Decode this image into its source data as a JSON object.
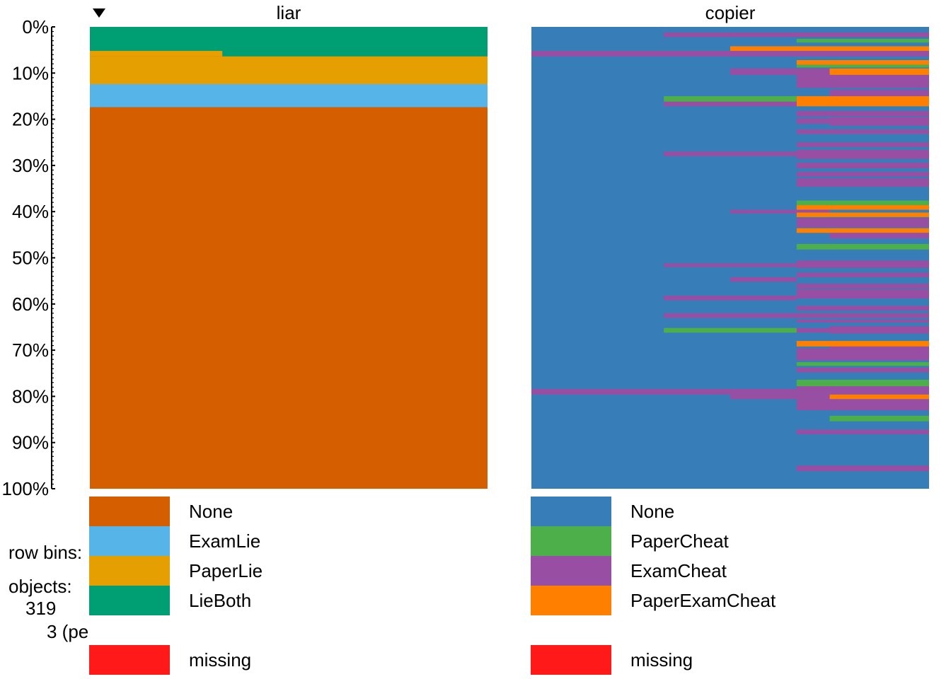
{
  "chart_data": {
    "type": "tableplot",
    "sort_indicator": "descending",
    "y_axis": {
      "ticks": [
        "0%",
        "10%",
        "20%",
        "30%",
        "40%",
        "50%",
        "60%",
        "70%",
        "80%",
        "90%",
        "100%"
      ],
      "range": [
        0,
        100
      ]
    },
    "info": {
      "row_bins_label": "row bins:",
      "objects_label": "objects:",
      "objects_count": "319",
      "objects_per_bin": "3 (pe"
    },
    "columns": [
      {
        "name": "liar",
        "sorted": true,
        "categories": [
          {
            "label": "None",
            "color": "#D55E00"
          },
          {
            "label": "ExamLie",
            "color": "#56B4E9"
          },
          {
            "label": "PaperLie",
            "color": "#E69F00"
          },
          {
            "label": "LieBoth",
            "color": "#009E73"
          }
        ],
        "missing": {
          "label": "missing",
          "color": "#FF1919"
        },
        "segments": [
          {
            "category": "LieBoth",
            "y0": 0,
            "y1": 5.2,
            "x0": 0,
            "x1": 1
          },
          {
            "category": "LieBoth",
            "y0": 5.2,
            "y1": 6.4,
            "x0": 0.333,
            "x1": 1
          },
          {
            "category": "PaperLie",
            "y0": 5.2,
            "y1": 6.4,
            "x0": 0,
            "x1": 0.333
          },
          {
            "category": "PaperLie",
            "y0": 6.4,
            "y1": 12.4,
            "x0": 0,
            "x1": 1
          },
          {
            "category": "ExamLie",
            "y0": 12.4,
            "y1": 17.4,
            "x0": 0,
            "x1": 1
          },
          {
            "category": "None",
            "y0": 17.4,
            "y1": 100,
            "x0": 0,
            "x1": 1
          }
        ]
      },
      {
        "name": "copier",
        "sorted": false,
        "categories": [
          {
            "label": "None",
            "color": "#377EB8"
          },
          {
            "label": "PaperCheat",
            "color": "#4DAF4A"
          },
          {
            "label": "ExamCheat",
            "color": "#984EA3"
          },
          {
            "label": "PaperExamCheat",
            "color": "#FF7F00"
          }
        ],
        "missing": {
          "label": "missing",
          "color": "#FF1919"
        },
        "segments": [
          {
            "category": "ExamCheat",
            "y0": 1.2,
            "y1": 2.2,
            "x0": 0.333,
            "x1": 1
          },
          {
            "category": "PaperCheat",
            "y0": 2.6,
            "y1": 3.4,
            "x0": 0.667,
            "x1": 1
          },
          {
            "category": "PaperExamCheat",
            "y0": 4.2,
            "y1": 5.2,
            "x0": 0.5,
            "x1": 1
          },
          {
            "category": "ExamCheat",
            "y0": 5.2,
            "y1": 6.4,
            "x0": 0,
            "x1": 1
          },
          {
            "category": "PaperExamCheat",
            "y0": 7.2,
            "y1": 8.2,
            "x0": 0.667,
            "x1": 1
          },
          {
            "category": "PaperCheat",
            "y0": 8.2,
            "y1": 8.8,
            "x0": 0.667,
            "x1": 1
          },
          {
            "category": "ExamCheat",
            "y0": 9.0,
            "y1": 10.4,
            "x0": 0.5,
            "x1": 0.75
          },
          {
            "category": "PaperExamCheat",
            "y0": 9.0,
            "y1": 10.4,
            "x0": 0.75,
            "x1": 1
          },
          {
            "category": "ExamCheat",
            "y0": 10.4,
            "y1": 13.2,
            "x0": 0.667,
            "x1": 1
          },
          {
            "category": "ExamCheat",
            "y0": 13.6,
            "y1": 15.0,
            "x0": 0.75,
            "x1": 1
          },
          {
            "category": "PaperCheat",
            "y0": 15.0,
            "y1": 16.2,
            "x0": 0.333,
            "x1": 0.667
          },
          {
            "category": "PaperExamCheat",
            "y0": 15.0,
            "y1": 17.2,
            "x0": 0.667,
            "x1": 1
          },
          {
            "category": "ExamCheat",
            "y0": 16.2,
            "y1": 17.2,
            "x0": 0.333,
            "x1": 0.667
          },
          {
            "category": "ExamCheat",
            "y0": 18.2,
            "y1": 19.4,
            "x0": 0.667,
            "x1": 1
          },
          {
            "category": "ExamCheat",
            "y0": 19.8,
            "y1": 21.0,
            "x0": 0.667,
            "x1": 0.75
          },
          {
            "category": "ExamCheat",
            "y0": 19.6,
            "y1": 21.4,
            "x0": 0.75,
            "x1": 1
          },
          {
            "category": "ExamCheat",
            "y0": 22.2,
            "y1": 23.2,
            "x0": 0.667,
            "x1": 1
          },
          {
            "category": "ExamCheat",
            "y0": 25.0,
            "y1": 26.0,
            "x0": 0.667,
            "x1": 1
          },
          {
            "category": "ExamCheat",
            "y0": 27.0,
            "y1": 28.0,
            "x0": 0.333,
            "x1": 0.667
          },
          {
            "category": "ExamCheat",
            "y0": 26.6,
            "y1": 28.6,
            "x0": 0.667,
            "x1": 1
          },
          {
            "category": "ExamCheat",
            "y0": 29.4,
            "y1": 30.6,
            "x0": 0.667,
            "x1": 1
          },
          {
            "category": "ExamCheat",
            "y0": 31.4,
            "y1": 32.4,
            "x0": 0.667,
            "x1": 1
          },
          {
            "category": "ExamCheat",
            "y0": 32.8,
            "y1": 34.6,
            "x0": 0.667,
            "x1": 1
          },
          {
            "category": "PaperCheat",
            "y0": 37.6,
            "y1": 38.6,
            "x0": 0.667,
            "x1": 1
          },
          {
            "category": "PaperExamCheat",
            "y0": 38.6,
            "y1": 39.6,
            "x0": 0.667,
            "x1": 1
          },
          {
            "category": "ExamCheat",
            "y0": 39.6,
            "y1": 40.4,
            "x0": 0.5,
            "x1": 0.667
          },
          {
            "category": "ExamCheat",
            "y0": 39.6,
            "y1": 40.4,
            "x0": 0.667,
            "x1": 0.75
          },
          {
            "category": "PaperExamCheat",
            "y0": 40.2,
            "y1": 41.2,
            "x0": 0.667,
            "x1": 1
          },
          {
            "category": "ExamCheat",
            "y0": 41.4,
            "y1": 43.4,
            "x0": 0.667,
            "x1": 1
          },
          {
            "category": "PaperExamCheat",
            "y0": 43.6,
            "y1": 44.6,
            "x0": 0.667,
            "x1": 1
          },
          {
            "category": "ExamCheat",
            "y0": 44.6,
            "y1": 45.8,
            "x0": 0.75,
            "x1": 1
          },
          {
            "category": "PaperCheat",
            "y0": 47.0,
            "y1": 48.2,
            "x0": 0.667,
            "x1": 1
          },
          {
            "category": "ExamCheat",
            "y0": 50.6,
            "y1": 52.2,
            "x0": 0.667,
            "x1": 1
          },
          {
            "category": "ExamCheat",
            "y0": 51.2,
            "y1": 52.0,
            "x0": 0.333,
            "x1": 0.667
          },
          {
            "category": "ExamCheat",
            "y0": 53.2,
            "y1": 54.2,
            "x0": 0.667,
            "x1": 1
          },
          {
            "category": "ExamCheat",
            "y0": 54.2,
            "y1": 55.2,
            "x0": 0.5,
            "x1": 0.667
          },
          {
            "category": "ExamCheat",
            "y0": 55.6,
            "y1": 56.6,
            "x0": 0.667,
            "x1": 1
          },
          {
            "category": "ExamCheat",
            "y0": 56.8,
            "y1": 58.8,
            "x0": 0.667,
            "x1": 1
          },
          {
            "category": "ExamCheat",
            "y0": 58.2,
            "y1": 59.2,
            "x0": 0.333,
            "x1": 0.667
          },
          {
            "category": "ExamCheat",
            "y0": 60.4,
            "y1": 61.4,
            "x0": 0.667,
            "x1": 1
          },
          {
            "category": "ExamCheat",
            "y0": 62.0,
            "y1": 63.0,
            "x0": 0.333,
            "x1": 1
          },
          {
            "category": "ExamCheat",
            "y0": 63.4,
            "y1": 64.0,
            "x0": 0.667,
            "x1": 1
          },
          {
            "category": "ExamCheat",
            "y0": 64.8,
            "y1": 66.4,
            "x0": 0.75,
            "x1": 1
          },
          {
            "category": "PaperCheat",
            "y0": 65.2,
            "y1": 66.2,
            "x0": 0.333,
            "x1": 0.667
          },
          {
            "category": "ExamCheat",
            "y0": 65.2,
            "y1": 66.2,
            "x0": 0.667,
            "x1": 0.75
          },
          {
            "category": "PaperExamCheat",
            "y0": 68.0,
            "y1": 69.2,
            "x0": 0.667,
            "x1": 1
          },
          {
            "category": "ExamCheat",
            "y0": 69.2,
            "y1": 72.2,
            "x0": 0.75,
            "x1": 1
          },
          {
            "category": "ExamCheat",
            "y0": 69.6,
            "y1": 72.2,
            "x0": 0.667,
            "x1": 0.75
          },
          {
            "category": "PaperCheat",
            "y0": 72.6,
            "y1": 73.4,
            "x0": 0.667,
            "x1": 1
          },
          {
            "category": "ExamCheat",
            "y0": 73.8,
            "y1": 74.8,
            "x0": 0.667,
            "x1": 1
          },
          {
            "category": "PaperCheat",
            "y0": 76.4,
            "y1": 77.8,
            "x0": 0.667,
            "x1": 1
          },
          {
            "category": "ExamCheat",
            "y0": 77.8,
            "y1": 78.4,
            "x0": 0.667,
            "x1": 1
          },
          {
            "category": "ExamCheat",
            "y0": 78.4,
            "y1": 79.6,
            "x0": 0,
            "x1": 1
          },
          {
            "category": "ExamCheat",
            "y0": 79.6,
            "y1": 80.6,
            "x0": 0.5,
            "x1": 0.75
          },
          {
            "category": "PaperExamCheat",
            "y0": 79.6,
            "y1": 80.6,
            "x0": 0.75,
            "x1": 1
          },
          {
            "category": "ExamCheat",
            "y0": 80.6,
            "y1": 83.0,
            "x0": 0.667,
            "x1": 1
          },
          {
            "category": "PaperCheat",
            "y0": 84.2,
            "y1": 85.4,
            "x0": 0.75,
            "x1": 1
          },
          {
            "category": "ExamCheat",
            "y0": 87.2,
            "y1": 88.2,
            "x0": 0.667,
            "x1": 1
          },
          {
            "category": "ExamCheat",
            "y0": 95.0,
            "y1": 96.2,
            "x0": 0.667,
            "x1": 1
          }
        ]
      }
    ]
  }
}
